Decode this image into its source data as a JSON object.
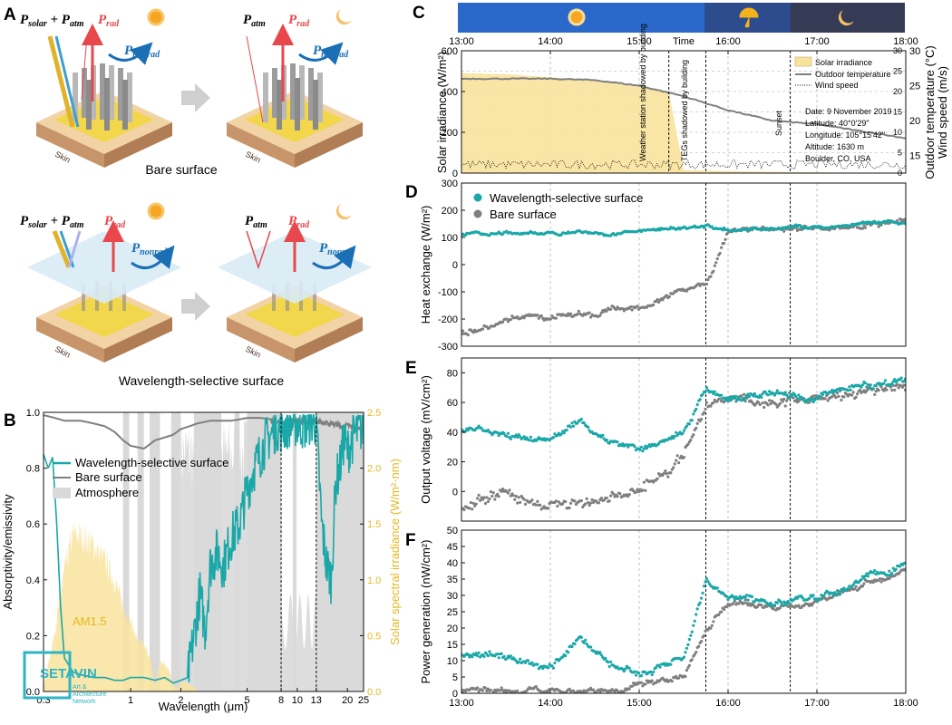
{
  "panels": {
    "A": {
      "letter": "A",
      "bare_caption": "Bare surface",
      "selective_caption": "Wavelength-selective surface",
      "skin_label": "Skin",
      "labels": {
        "p_solar_atm": "P",
        "solar": "solar",
        "plus": " + ",
        "atm": "atm",
        "rad": "rad",
        "nonrad": "nonrad"
      },
      "colors": {
        "rad": "#e8474c",
        "nonrad": "#1a6fb5",
        "sun": "#f5a623",
        "moon": "#f6c065"
      }
    },
    "B": {
      "letter": "B"
    },
    "C": {
      "letter": "C"
    },
    "D": {
      "letter": "D"
    },
    "E": {
      "letter": "E"
    },
    "F": {
      "letter": "F"
    }
  },
  "watermark": {
    "text": "SETAVIN",
    "line1": "Art &",
    "line2": "Architecture",
    "line3": "Network"
  },
  "colors": {
    "teal": "#1aa7a7",
    "gray": "#7f7f7f",
    "solar": "#f8e39c",
    "atm": "#d9d9d9",
    "yellow_axis": "#e6b820"
  },
  "chart_data": [
    {
      "id": "B",
      "type": "line",
      "xlabel": "Wavelength (μm)",
      "ylabel": "Absorptivity/emissivity",
      "y2label": "Solar spectral irradiance (W/m²·nm)",
      "xscale": "log",
      "xlim": [
        0.3,
        25
      ],
      "ylim": [
        0,
        1.0
      ],
      "y2lim": [
        0,
        2.5
      ],
      "xticks": [
        "0.3",
        "1",
        "2",
        "5",
        "8",
        "10",
        "13",
        "20",
        "25"
      ],
      "xtick_values": [
        0.3,
        1,
        2,
        5,
        8,
        10,
        13,
        20,
        25
      ],
      "yticks": [
        "0.0",
        "0.2",
        "0.4",
        "0.6",
        "0.8",
        "1.0"
      ],
      "y2ticks": [
        "0.0",
        "0.5",
        "1.0",
        "1.5",
        "2.0",
        "2.5"
      ],
      "legend": [
        "Wavelength-selective surface",
        "Bare surface",
        "Atmosphere"
      ],
      "annotation": "AM1.5",
      "vlines": [
        8,
        13
      ],
      "series": [
        {
          "name": "Wavelength-selective surface",
          "x": [
            0.3,
            0.32,
            0.34,
            0.36,
            0.38,
            0.4,
            0.45,
            0.5,
            0.6,
            0.7,
            0.8,
            0.9,
            1.0,
            1.2,
            1.4,
            1.6,
            1.8,
            2.0,
            2.2,
            2.4,
            2.6,
            2.8,
            3.0,
            3.3,
            3.6,
            4.0,
            4.5,
            5.0,
            5.5,
            6.0,
            6.5,
            7.0,
            7.5,
            8.0,
            9.0,
            10,
            11,
            12,
            13,
            14,
            15,
            16,
            17,
            18,
            19,
            20,
            22,
            25
          ],
          "y": [
            0.85,
            0.8,
            0.84,
            0.6,
            0.3,
            0.12,
            0.07,
            0.06,
            0.05,
            0.05,
            0.04,
            0.04,
            0.05,
            0.05,
            0.04,
            0.05,
            0.03,
            0.04,
            0.05,
            0.2,
            0.35,
            0.22,
            0.45,
            0.5,
            0.45,
            0.55,
            0.6,
            0.72,
            0.8,
            0.85,
            0.9,
            0.92,
            0.95,
            0.94,
            0.96,
            0.96,
            0.95,
            0.97,
            0.96,
            0.6,
            0.45,
            0.4,
            0.75,
            0.8,
            0.9,
            0.86,
            0.92,
            0.95
          ]
        },
        {
          "name": "Bare surface",
          "x": [
            0.3,
            0.35,
            0.4,
            0.5,
            0.6,
            0.7,
            0.8,
            0.9,
            1.0,
            1.2,
            1.4,
            1.6,
            1.8,
            2.0,
            2.5,
            3.0,
            4.0,
            5.0,
            6.0,
            8.0,
            10,
            13,
            15,
            20,
            25
          ],
          "y": [
            0.99,
            0.98,
            0.97,
            0.97,
            0.96,
            0.95,
            0.93,
            0.9,
            0.88,
            0.87,
            0.9,
            0.91,
            0.92,
            0.94,
            0.96,
            0.97,
            0.97,
            0.98,
            0.98,
            0.97,
            0.98,
            0.98,
            0.97,
            0.96,
            0.95
          ]
        },
        {
          "name": "AM1.5",
          "x": [
            0.3,
            0.35,
            0.4,
            0.45,
            0.5,
            0.55,
            0.6,
            0.7,
            0.8,
            0.9,
            1.0,
            1.1,
            1.2,
            1.3,
            1.4,
            1.5,
            1.6,
            1.7,
            1.8,
            1.9,
            2.0,
            2.2,
            2.5
          ],
          "y2": [
            0.05,
            0.6,
            1.2,
            1.55,
            1.55,
            1.5,
            1.45,
            1.3,
            1.1,
            0.85,
            0.7,
            0.5,
            0.45,
            0.35,
            0.05,
            0.3,
            0.28,
            0.22,
            0.06,
            0.02,
            0.1,
            0.08,
            0.03
          ]
        }
      ]
    },
    {
      "id": "C",
      "type": "area",
      "xlabel": "Time",
      "xlim": [
        "13:00",
        "18:00"
      ],
      "xticks": [
        "13:00",
        "14:00",
        "15:00",
        "16:00",
        "17:00",
        "18:00"
      ],
      "ylabel": "Solar irradiance (W/m²)",
      "ylim": [
        0,
        600
      ],
      "yticks": [
        "0",
        "200",
        "400",
        "600"
      ],
      "y2label": "Outdoor temperature (°C)",
      "y2label_b": "Wind speed (m/s)",
      "y2ticks_temp": [
        "15",
        "20",
        "25",
        "30"
      ],
      "y2ticks_wind": [
        "0",
        "5",
        "10",
        "15",
        "20",
        "25",
        "30"
      ],
      "legend": [
        "Solar irradiance",
        "Outdoor temperature",
        "Wind speed"
      ],
      "annotations": [
        "Weather station shadowed by building",
        "TEGs shadowed by building",
        "Sunset"
      ],
      "info": [
        "Date: 9 November 2019",
        "Latitude: 40°0'29\"",
        "Longitude: 105°15'42\"",
        "Altitude: 1630 m",
        "Boulder, CO, USA"
      ],
      "vlines": [
        "15:20",
        "15:45",
        "16:42"
      ],
      "series": [
        {
          "name": "Solar irradiance",
          "x": [
            "13:00",
            "13:30",
            "14:00",
            "14:30",
            "15:00",
            "15:20",
            "15:30",
            "15:45",
            "16:00",
            "16:40",
            "18:00"
          ],
          "y": [
            490,
            485,
            470,
            455,
            430,
            400,
            15,
            12,
            10,
            5,
            0
          ]
        },
        {
          "name": "Outdoor temperature",
          "x": [
            "13:00",
            "13:30",
            "14:00",
            "14:30",
            "15:00",
            "15:30",
            "16:00",
            "16:30",
            "17:00",
            "17:30",
            "18:00"
          ],
          "y_temp": [
            26,
            26,
            26,
            25.8,
            25,
            23.5,
            21.5,
            20,
            19.5,
            18.5,
            17.5
          ]
        },
        {
          "name": "Wind speed",
          "x": [
            "13:00",
            "18:00"
          ],
          "y_wind_range": [
            0,
            3
          ]
        }
      ],
      "banner": [
        "sun",
        "umbrella",
        "moon"
      ]
    },
    {
      "id": "D",
      "type": "scatter",
      "ylabel": "Heat exchange (W/m²)",
      "ylim": [
        -300,
        300
      ],
      "yticks": [
        "-300",
        "-200",
        "-100",
        "0",
        "100",
        "200",
        "300"
      ],
      "xlim": [
        "13:00",
        "18:00"
      ],
      "legend": [
        "Wavelength-selective surface",
        "Bare surface"
      ],
      "series": [
        {
          "name": "Wavelength-selective surface",
          "x": [
            "13:00",
            "14:00",
            "15:00",
            "15:45",
            "16:00",
            "17:00",
            "18:00"
          ],
          "y": [
            110,
            115,
            120,
            140,
            125,
            140,
            150
          ]
        },
        {
          "name": "Bare surface",
          "x": [
            "13:00",
            "13:30",
            "14:00",
            "14:30",
            "15:00",
            "15:30",
            "15:45",
            "16:00",
            "17:00",
            "18:00"
          ],
          "y": [
            -250,
            -210,
            -200,
            -180,
            -150,
            -100,
            -60,
            125,
            140,
            150
          ]
        }
      ]
    },
    {
      "id": "E",
      "type": "scatter",
      "ylabel": "Output voltage (mV/cm²)",
      "ylim": [
        -20,
        90
      ],
      "yticks": [
        "0",
        "20",
        "40",
        "60",
        "80"
      ],
      "xlim": [
        "13:00",
        "18:00"
      ],
      "series": [
        {
          "name": "Wavelength-selective surface",
          "x": [
            "13:00",
            "13:30",
            "14:00",
            "14:20",
            "14:40",
            "15:00",
            "15:30",
            "15:45",
            "16:00",
            "16:30",
            "17:00",
            "17:30",
            "18:00"
          ],
          "y": [
            40,
            37,
            35,
            48,
            35,
            30,
            40,
            70,
            62,
            65,
            62,
            70,
            75
          ]
        },
        {
          "name": "Bare surface",
          "x": [
            "13:00",
            "13:30",
            "14:00",
            "14:30",
            "15:00",
            "15:30",
            "15:45",
            "16:00",
            "17:00",
            "18:00"
          ],
          "y": [
            -10,
            0,
            -10,
            -5,
            5,
            25,
            55,
            62,
            63,
            72
          ]
        }
      ]
    },
    {
      "id": "F",
      "type": "scatter",
      "ylabel": "Power generation (nW/cm²)",
      "ylim": [
        0,
        50
      ],
      "yticks": [
        "0",
        "5",
        "10",
        "15",
        "20",
        "25",
        "30",
        "35",
        "40",
        "45",
        "50"
      ],
      "xlim": [
        "13:00",
        "18:00"
      ],
      "xticks": [
        "13:00",
        "14:00",
        "15:00",
        "16:00",
        "17:00",
        "18:00"
      ],
      "series": [
        {
          "name": "Wavelength-selective surface",
          "x": [
            "13:00",
            "13:30",
            "14:00",
            "14:20",
            "14:40",
            "15:00",
            "15:30",
            "15:45",
            "16:00",
            "16:30",
            "17:00",
            "17:30",
            "18:00"
          ],
          "y": [
            12,
            10,
            8,
            17,
            9,
            7,
            12,
            35,
            30,
            27,
            28,
            35,
            40
          ]
        },
        {
          "name": "Bare surface",
          "x": [
            "13:00",
            "13:30",
            "14:00",
            "14:30",
            "15:00",
            "15:30",
            "15:45",
            "16:00",
            "17:00",
            "18:00"
          ],
          "y": [
            1,
            1,
            0.5,
            1,
            2,
            5,
            20,
            27,
            28,
            38
          ]
        }
      ]
    }
  ]
}
